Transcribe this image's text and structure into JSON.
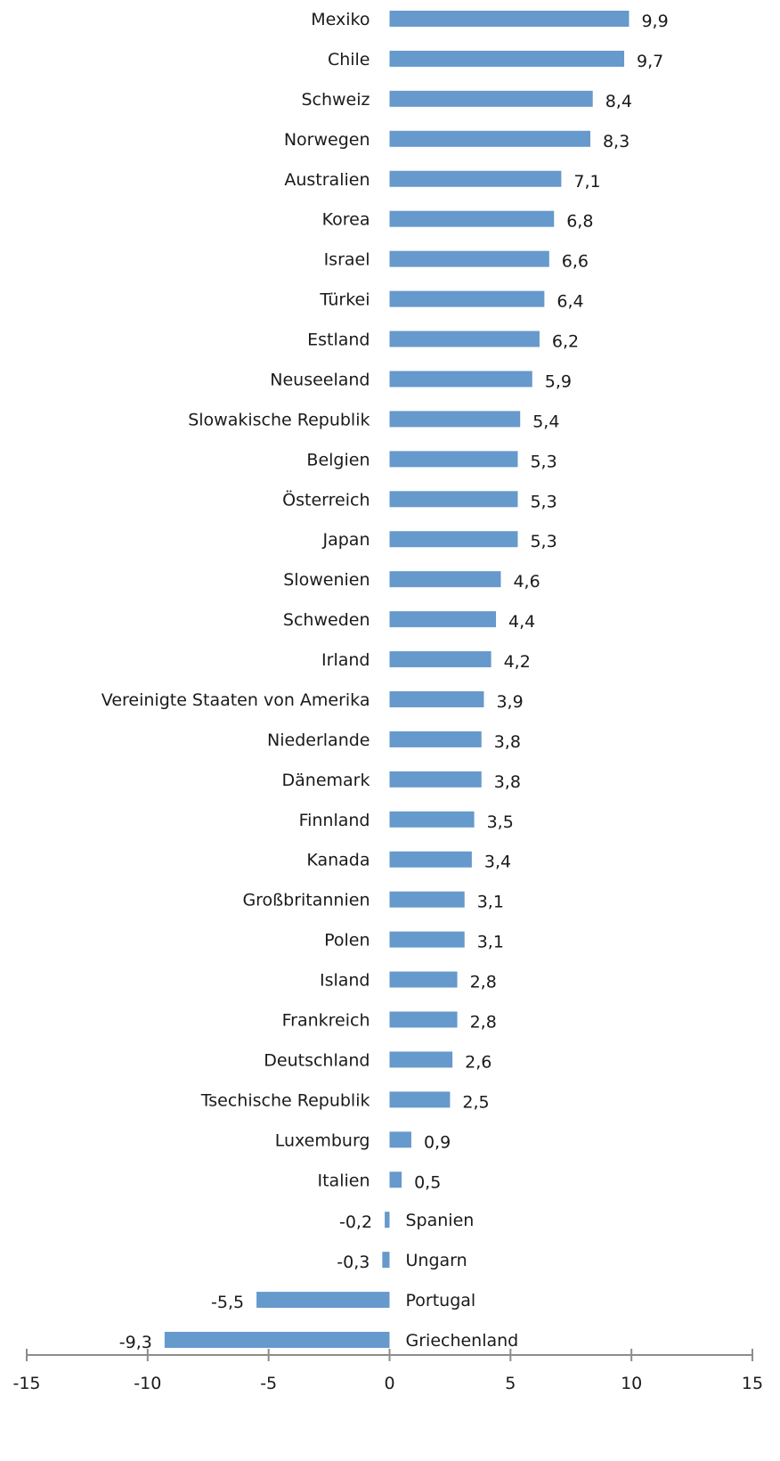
{
  "chart_data": {
    "type": "bar",
    "orientation": "horizontal",
    "categories": [
      "Mexiko",
      "Chile",
      "Schweiz",
      "Norwegen",
      "Australien",
      "Korea",
      "Israel",
      "Türkei",
      "Estland",
      "Neuseeland",
      "Slowakische Republik",
      "Belgien",
      "Österreich",
      "Japan",
      "Slowenien",
      "Schweden",
      "Irland",
      "Vereinigte Staaten von Amerika",
      "Niederlande",
      "Dänemark",
      "Finnland",
      "Kanada",
      "Großbritannien",
      "Polen",
      "Island",
      "Frankreich",
      "Deutschland",
      "Tsechische Republik",
      "Luxemburg",
      "Italien",
      "Spanien",
      "Ungarn",
      "Portugal",
      "Griechenland"
    ],
    "values": [
      9.9,
      9.7,
      8.4,
      8.3,
      7.1,
      6.8,
      6.6,
      6.4,
      6.2,
      5.9,
      5.4,
      5.3,
      5.3,
      5.3,
      4.6,
      4.4,
      4.2,
      3.9,
      3.8,
      3.8,
      3.5,
      3.4,
      3.1,
      3.1,
      2.8,
      2.8,
      2.6,
      2.5,
      0.9,
      0.5,
      -0.2,
      -0.3,
      -5.5,
      -9.3
    ],
    "value_labels": [
      "9,9",
      "9,7",
      "8,4",
      "8,3",
      "7,1",
      "6,8",
      "6,6",
      "6,4",
      "6,2",
      "5,9",
      "5,4",
      "5,3",
      "5,3",
      "5,3",
      "4,6",
      "4,4",
      "4,2",
      "3,9",
      "3,8",
      "3,8",
      "3,5",
      "3,4",
      "3,1",
      "3,1",
      "2,8",
      "2,8",
      "2,6",
      "2,5",
      "0,9",
      "0,5",
      "-0,2",
      "-0,3",
      "-5,5",
      "-9,3"
    ],
    "xlim": [
      -15,
      15
    ],
    "xticks": [
      -15,
      -10,
      -5,
      0,
      5,
      10,
      15
    ],
    "xtick_labels": [
      "-15",
      "-10",
      "-5",
      "0",
      "5",
      "10",
      "15"
    ],
    "grid": false,
    "legend": "none",
    "colors": {
      "bar": "#6699cc",
      "axis": "#8c8c8c",
      "text": "#1a1a1a"
    }
  }
}
